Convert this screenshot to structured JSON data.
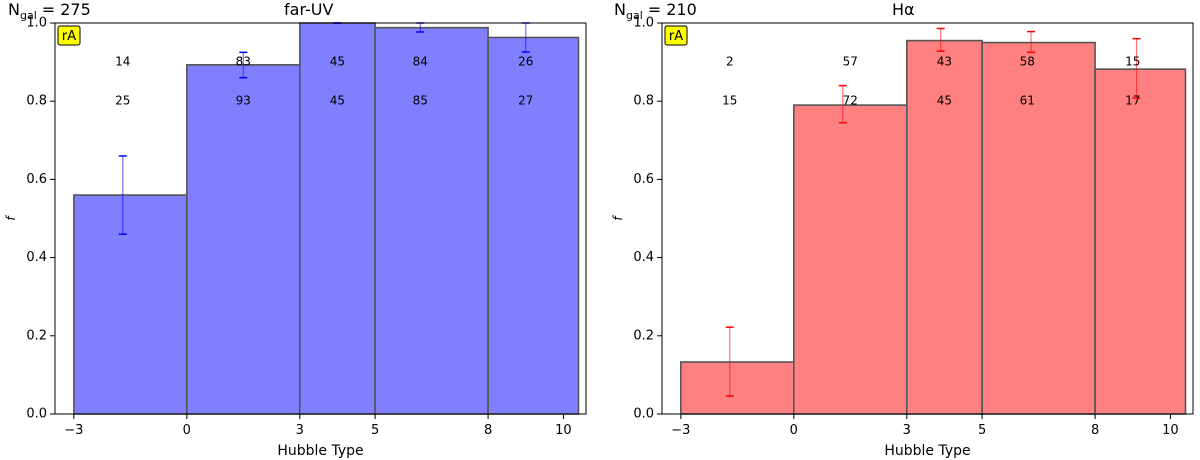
{
  "chart_data": [
    {
      "type": "bar",
      "title": "far-UV",
      "ngal_label": "N",
      "ngal_sub": "gal",
      "ngal_value": "= 275",
      "tag": "rA",
      "xlabel": "Hubble Type",
      "ylabel": "f",
      "xlim": [
        -3.5,
        10.6
      ],
      "ylim": [
        0.0,
        1.0
      ],
      "xticks": [
        -3,
        0,
        3,
        5,
        8,
        10
      ],
      "xtick_labels": [
        "−3",
        "0",
        "3",
        "5",
        "8",
        "10"
      ],
      "yticks": [
        0.0,
        0.2,
        0.4,
        0.6,
        0.8,
        1.0
      ],
      "ytick_labels": [
        "0.0",
        "0.2",
        "0.4",
        "0.6",
        "0.8",
        "1.0"
      ],
      "bins": [
        [
          -3.0,
          0.0
        ],
        [
          0.0,
          3.0
        ],
        [
          3.0,
          5.0
        ],
        [
          5.0,
          8.0
        ],
        [
          8.0,
          10.4
        ]
      ],
      "values": [
        0.56,
        0.893,
        1.0,
        0.988,
        0.963
      ],
      "err_x": [
        -1.7,
        1.5,
        4.0,
        6.2,
        9.0
      ],
      "err_low": [
        0.46,
        0.86,
        1.0,
        0.977,
        0.926
      ],
      "err_high": [
        0.66,
        0.925,
        1.0,
        1.0,
        1.0
      ],
      "counts_top": [
        "14",
        "83",
        "45",
        "84",
        "26"
      ],
      "counts_bottom": [
        "25",
        "93",
        "45",
        "85",
        "27"
      ],
      "counts_x": [
        -1.7,
        1.5,
        4.0,
        6.2,
        9.0
      ],
      "bar_color": "#8080ff",
      "err_color": "#0000ff"
    },
    {
      "type": "bar",
      "title": "Hα",
      "ngal_label": "N",
      "ngal_sub": "gal",
      "ngal_value": "= 210",
      "tag": "rA",
      "xlabel": "Hubble Type",
      "ylabel": "f",
      "xlim": [
        -3.5,
        10.6
      ],
      "ylim": [
        0.0,
        1.0
      ],
      "xticks": [
        -3,
        0,
        3,
        5,
        8,
        10
      ],
      "xtick_labels": [
        "−3",
        "0",
        "3",
        "5",
        "8",
        "10"
      ],
      "yticks": [
        0.0,
        0.2,
        0.4,
        0.6,
        0.8,
        1.0
      ],
      "ytick_labels": [
        "0.0",
        "0.2",
        "0.4",
        "0.6",
        "0.8",
        "1.0"
      ],
      "bins": [
        [
          -3.0,
          0.0
        ],
        [
          0.0,
          3.0
        ],
        [
          3.0,
          5.0
        ],
        [
          5.0,
          8.0
        ],
        [
          8.0,
          10.4
        ]
      ],
      "values": [
        0.133,
        0.79,
        0.955,
        0.95,
        0.882
      ],
      "err_x": [
        -1.7,
        1.3,
        3.9,
        6.3,
        9.1
      ],
      "err_low": [
        0.046,
        0.745,
        0.928,
        0.925,
        0.808
      ],
      "err_high": [
        0.222,
        0.84,
        0.986,
        0.978,
        0.96
      ],
      "counts_top": [
        "2",
        "57",
        "43",
        "58",
        "15"
      ],
      "counts_bottom": [
        "15",
        "72",
        "45",
        "61",
        "17"
      ],
      "counts_x": [
        -1.7,
        1.5,
        4.0,
        6.2,
        9.0
      ],
      "bar_color": "#ff8080",
      "err_color": "#ff0000"
    }
  ]
}
